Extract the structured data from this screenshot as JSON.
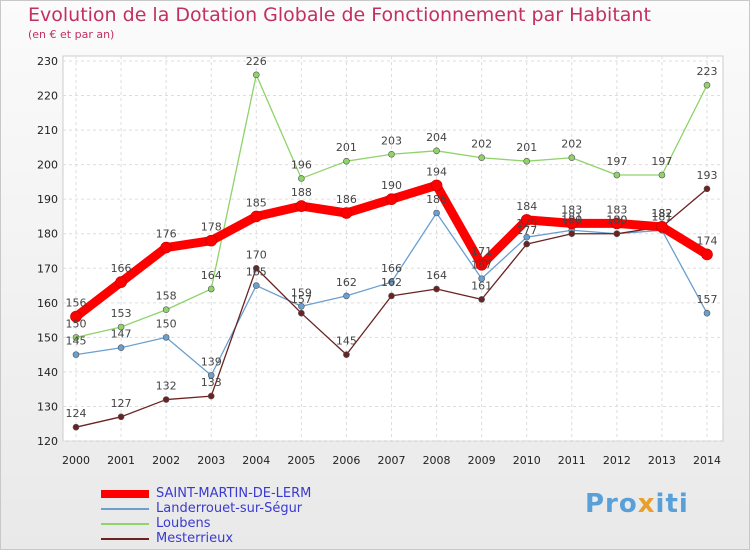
{
  "chart_data": {
    "type": "line",
    "title": "Evolution de la Dotation Globale de Fonctionnement par Habitant",
    "subtitle": "(en € et par an)",
    "categories": [
      "2000",
      "2001",
      "2002",
      "2003",
      "2004",
      "2005",
      "2006",
      "2007",
      "2008",
      "2009",
      "2010",
      "2011",
      "2012",
      "2013",
      "2014"
    ],
    "ylim": [
      120,
      230
    ],
    "yticks": [
      120,
      130,
      140,
      150,
      160,
      170,
      180,
      190,
      200,
      210,
      220,
      230
    ],
    "grid": true,
    "series": [
      {
        "name": "SAINT-MARTIN-DE-LERM",
        "color": "#ff0000",
        "values": [
          156,
          166,
          176,
          178,
          185,
          188,
          186,
          190,
          194,
          171,
          184,
          183,
          183,
          182,
          174
        ]
      },
      {
        "name": "Landerrouet-sur-Ségur",
        "color": "#6a9fd0",
        "values": [
          145,
          147,
          150,
          139,
          165,
          159,
          162,
          166,
          186,
          167,
          179,
          181,
          180,
          181,
          157
        ]
      },
      {
        "name": "Loubens",
        "color": "#8fd36a",
        "values": [
          150,
          153,
          158,
          164,
          226,
          196,
          201,
          203,
          204,
          202,
          201,
          202,
          197,
          197,
          223
        ]
      },
      {
        "name": "Mesterrieux",
        "color": "#6b2222",
        "values": [
          124,
          127,
          132,
          133,
          170,
          157,
          145,
          162,
          164,
          161,
          177,
          180,
          180,
          182,
          193
        ]
      }
    ]
  },
  "logo": {
    "part1": "Pro",
    "part2": "x",
    "part3": "iti"
  }
}
